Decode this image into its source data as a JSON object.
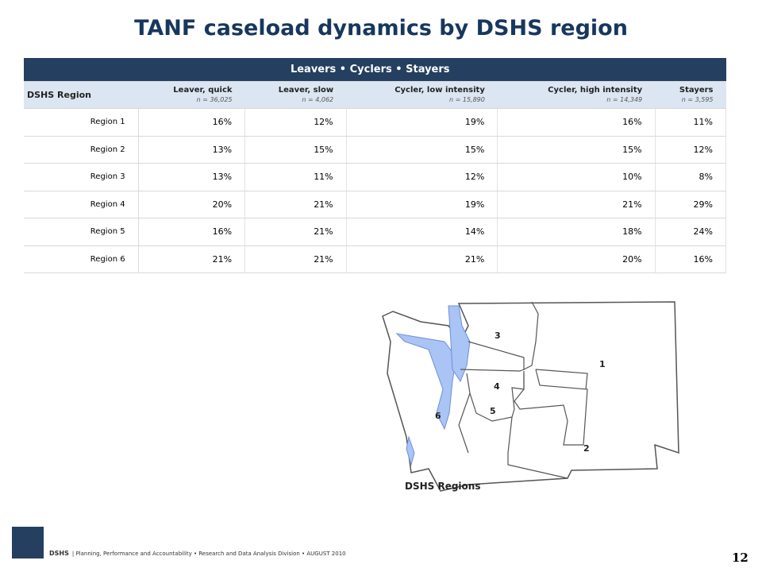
{
  "title": "TANF caseload dynamics by DSHS region",
  "table": {
    "banner": "Leavers • Cyclers • Stayers",
    "region_header": "DSHS Region",
    "columns": [
      {
        "name": "Leaver, quick",
        "n": "n = 36,025"
      },
      {
        "name": "Leaver, slow",
        "n": "n = 4,062"
      },
      {
        "name": "Cycler, low intensity",
        "n": "n = 15,890"
      },
      {
        "name": "Cycler, high intensity",
        "n": "n = 14,349"
      },
      {
        "name": "Stayers",
        "n": "n = 3,595"
      }
    ],
    "rows": [
      {
        "region": "Region 1",
        "values": [
          "16%",
          "12%",
          "19%",
          "16%",
          "11%"
        ]
      },
      {
        "region": "Region 2",
        "values": [
          "13%",
          "15%",
          "15%",
          "15%",
          "12%"
        ]
      },
      {
        "region": "Region 3",
        "values": [
          "13%",
          "11%",
          "12%",
          "10%",
          "8%"
        ]
      },
      {
        "region": "Region 4",
        "values": [
          "20%",
          "21%",
          "19%",
          "21%",
          "29%"
        ]
      },
      {
        "region": "Region 5",
        "values": [
          "16%",
          "21%",
          "14%",
          "18%",
          "24%"
        ]
      },
      {
        "region": "Region 6",
        "values": [
          "21%",
          "21%",
          "21%",
          "20%",
          "16%"
        ]
      }
    ]
  },
  "map": {
    "caption": "DSHS Regions",
    "labels": [
      "1",
      "2",
      "3",
      "4",
      "5",
      "6"
    ]
  },
  "footer": {
    "org": "DSHS",
    "text": "Planning, Performance and Accountability • Research and Data Analysis Division • AUGUST 2010",
    "page": "12"
  }
}
